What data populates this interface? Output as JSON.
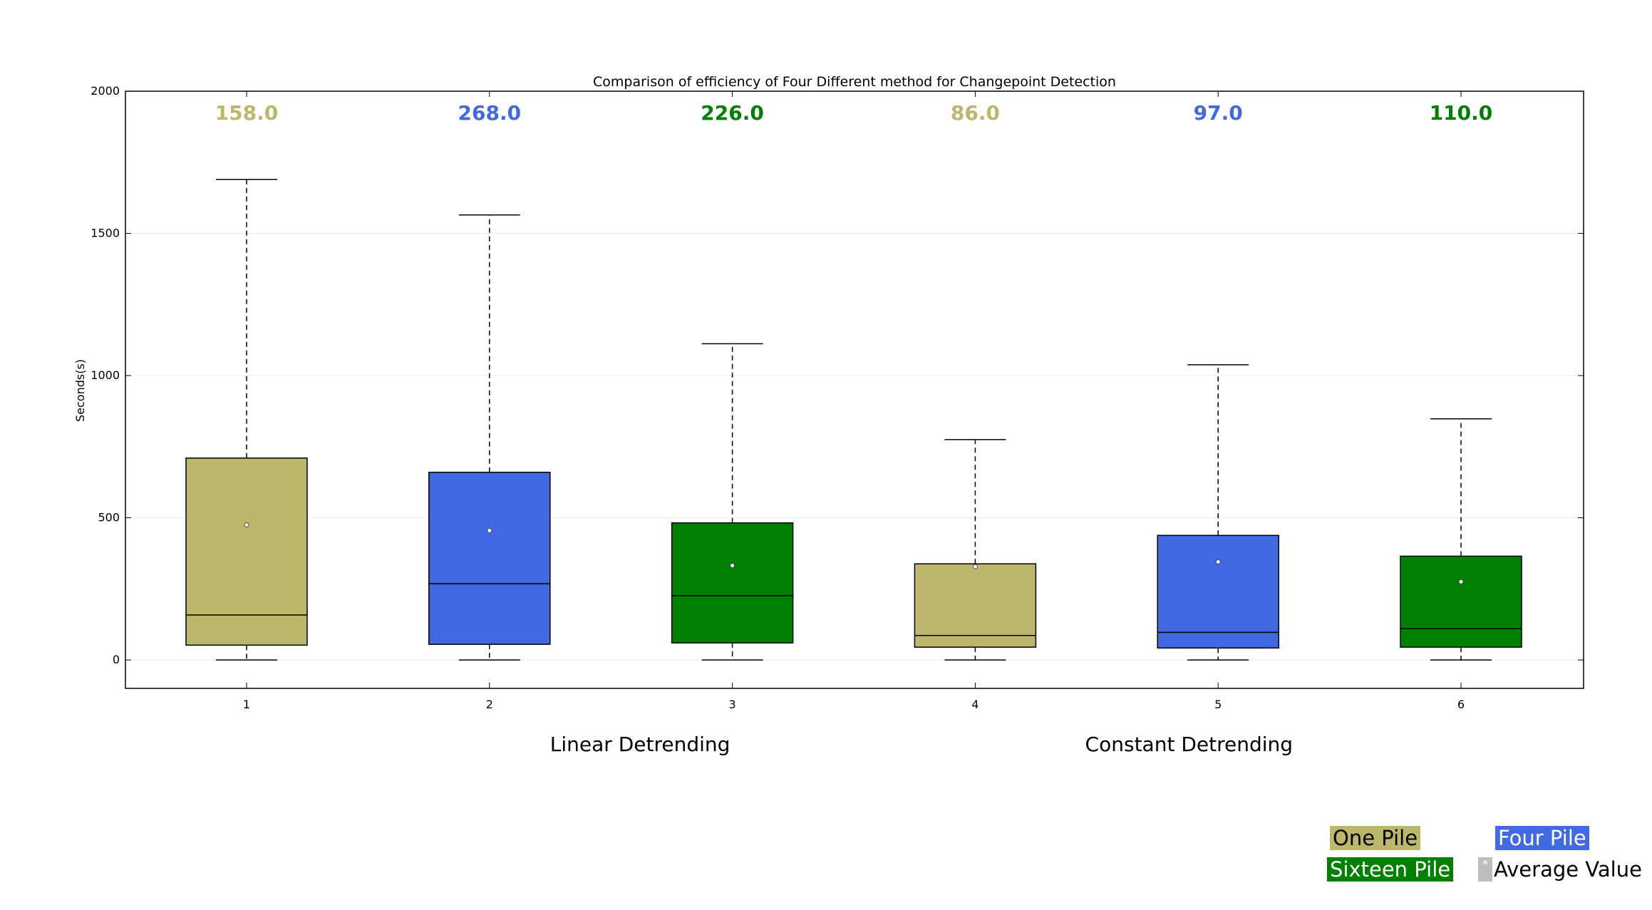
{
  "chart_data": {
    "type": "box",
    "title": "Comparison of efficiency of Four Different method for Changepoint Detection",
    "ylabel": "Seconds(s)",
    "xlabel": "",
    "ylim": [
      -100,
      2000
    ],
    "yticks": [
      "0",
      "500",
      "1000",
      "1500",
      "2000"
    ],
    "ytick_values": [
      0,
      500,
      1000,
      1500,
      2000
    ],
    "grid": "horizontal",
    "categories": [
      "1",
      "2",
      "3",
      "4",
      "5",
      "6"
    ],
    "group_labels": [
      {
        "text": "Linear Detrending",
        "center": 2.62
      },
      {
        "text": "Constant Detrending",
        "center": 4.88
      }
    ],
    "boxes": [
      {
        "x": "1",
        "min": 0,
        "q1": 52,
        "median": 158,
        "q3": 710,
        "max": 1690,
        "mean": 475,
        "median_label": "158.0",
        "color": "#bdb76b"
      },
      {
        "x": "2",
        "min": 0,
        "q1": 55,
        "median": 268,
        "q3": 660,
        "max": 1565,
        "mean": 455,
        "median_label": "268.0",
        "color": "#4169e1"
      },
      {
        "x": "3",
        "min": 0,
        "q1": 60,
        "median": 226,
        "q3": 482,
        "max": 1112,
        "mean": 332,
        "median_label": "226.0",
        "color": "#008000"
      },
      {
        "x": "4",
        "min": 0,
        "q1": 45,
        "median": 86,
        "q3": 338,
        "max": 775,
        "mean": 328,
        "median_label": "86.0",
        "color": "#bdb76b"
      },
      {
        "x": "5",
        "min": 0,
        "q1": 42,
        "median": 97,
        "q3": 438,
        "max": 1038,
        "mean": 345,
        "median_label": "97.0",
        "color": "#4169e1"
      },
      {
        "x": "6",
        "min": 0,
        "q1": 45,
        "median": 110,
        "q3": 365,
        "max": 848,
        "mean": 275,
        "median_label": "110.0",
        "color": "#008000"
      }
    ],
    "legend": {
      "placement": "bottom-right",
      "items": [
        {
          "label": "One Pile",
          "color": "#bdb76b",
          "text_color": "#000000"
        },
        {
          "label": "Four Pile",
          "color": "#4169e1",
          "text_color": "#ffffff"
        },
        {
          "label": "Sixteen Pile",
          "color": "#008000",
          "text_color": "#ffffff"
        },
        {
          "label": "Average Value",
          "swatch_color": "#bdbdbd",
          "marker": "*"
        }
      ]
    }
  }
}
